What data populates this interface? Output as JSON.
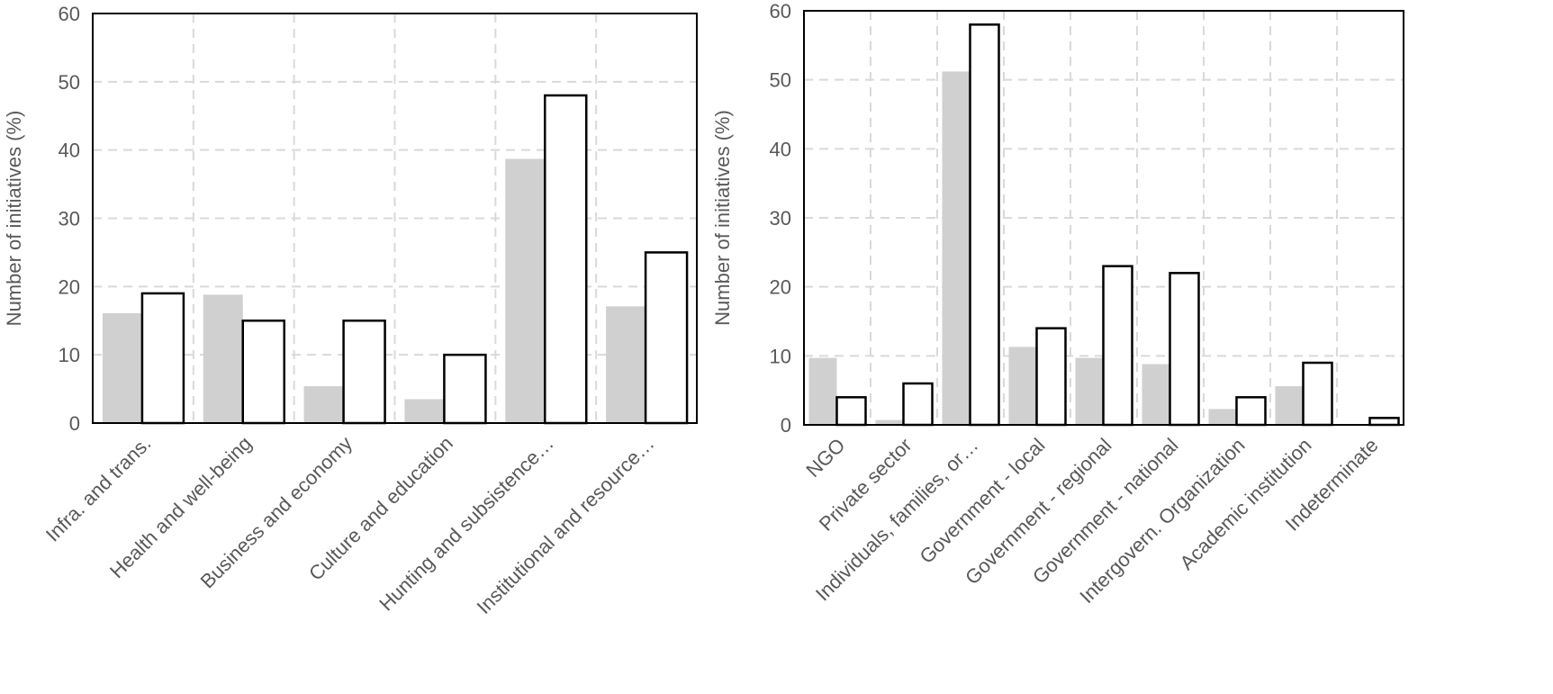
{
  "colors": {
    "gray_bar": "#d0d0d0",
    "white_bar": "#ffffff",
    "bar_stroke": "#000000",
    "grid": "#d9d9d9",
    "text": "#595959"
  },
  "chart_data": [
    {
      "type": "bar",
      "title": "",
      "xlabel": "",
      "ylabel": "Number of initiatives (%)",
      "ylim": [
        0,
        60
      ],
      "yticks": [
        0,
        10,
        20,
        30,
        40,
        50,
        60
      ],
      "grid": true,
      "categories": [
        "Infra. and trans.",
        "Health and well-being",
        "Business and economy",
        "Culture  and education",
        "Hunting and subsistence…",
        "Institutional and resource…"
      ],
      "series": [
        {
          "style": "gray",
          "values": [
            16.1,
            18.8,
            5.4,
            3.5,
            38.7,
            17.1
          ]
        },
        {
          "style": "white",
          "values": [
            19,
            15,
            15,
            10,
            48,
            25
          ]
        }
      ]
    },
    {
      "type": "bar",
      "title": "",
      "xlabel": "",
      "ylabel": "Number of initiatives (%)",
      "ylim": [
        0,
        60
      ],
      "yticks": [
        0,
        10,
        20,
        30,
        40,
        50,
        60
      ],
      "grid": true,
      "categories": [
        "NGO",
        "Private sector",
        "Individuals, families, or…",
        "Government - local",
        "Government - regional",
        "Government - national",
        "Intergovern. Organization",
        "Academic institution",
        "Indeterminate"
      ],
      "series": [
        {
          "style": "gray",
          "values": [
            9.7,
            0.7,
            51.2,
            11.3,
            9.7,
            8.8,
            2.3,
            5.6,
            0
          ]
        },
        {
          "style": "white",
          "values": [
            4,
            6,
            58,
            14,
            23,
            22,
            4,
            9,
            1
          ]
        }
      ]
    }
  ]
}
